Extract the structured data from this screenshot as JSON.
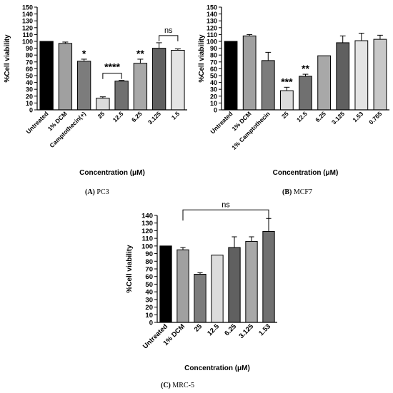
{
  "chart_data": [
    {
      "type": "bar",
      "panel": "A",
      "caption_letter": "(A)",
      "caption_name": "PC3",
      "xlabel": "Concentration (μM)",
      "ylabel": "%Cell viability",
      "ylim": [
        0,
        150
      ],
      "yticks": [
        0,
        10,
        20,
        30,
        40,
        50,
        60,
        70,
        80,
        90,
        100,
        110,
        120,
        130,
        140,
        150
      ],
      "categories": [
        "Untreated",
        "1% DCM",
        "Camptothecin(+)",
        "25",
        "12.5",
        "6.25",
        "3.125",
        "1.5"
      ],
      "values": [
        100,
        97,
        71,
        17,
        42,
        68,
        90,
        87
      ],
      "errors": [
        0,
        2,
        3,
        2,
        1,
        6,
        8,
        2
      ],
      "colors": [
        "#000000",
        "#a0a0a0",
        "#7c7c7c",
        "#dcdcdc",
        "#707070",
        "#a8a8a8",
        "#606060",
        "#e4e4e4"
      ],
      "bar_annotations": [
        {
          "category": "Camptothecin(+)",
          "text": "*"
        },
        {
          "category": "6.25",
          "text": "**"
        }
      ],
      "brackets": [
        {
          "from": "25",
          "to": "12.5",
          "text": "****"
        },
        {
          "from": "3.125",
          "to": "1.5",
          "text": "ns"
        }
      ]
    },
    {
      "type": "bar",
      "panel": "B",
      "caption_letter": "(B)",
      "caption_name": "MCF7",
      "xlabel": "Concentration (μM)",
      "ylabel": "%Cell viability",
      "ylim": [
        0,
        150
      ],
      "yticks": [
        0,
        10,
        20,
        30,
        40,
        50,
        60,
        70,
        80,
        90,
        100,
        110,
        120,
        130,
        140,
        150
      ],
      "categories": [
        "Untreated",
        "1% DCM",
        "1% Camptothecin",
        "25",
        "12.5",
        "6.25",
        "3.125",
        "1.53",
        "0.765"
      ],
      "values": [
        100,
        108,
        72,
        28,
        49,
        79,
        98,
        101,
        103
      ],
      "errors": [
        0,
        2,
        12,
        5,
        3,
        0,
        10,
        11,
        6
      ],
      "colors": [
        "#000000",
        "#a0a0a0",
        "#7c7c7c",
        "#dcdcdc",
        "#707070",
        "#a8a8a8",
        "#606060",
        "#e4e4e4",
        "#c8c8c8"
      ],
      "bar_annotations": [
        {
          "category": "25",
          "text": "***"
        },
        {
          "category": "12.5",
          "text": "**"
        }
      ],
      "brackets": []
    },
    {
      "type": "bar",
      "panel": "C",
      "caption_letter": "(C)",
      "caption_name": "MRC-5",
      "xlabel": "Concentration (μM)",
      "ylabel": "%Cell viability",
      "ylim": [
        0,
        140
      ],
      "yticks": [
        0,
        10,
        20,
        30,
        40,
        50,
        60,
        70,
        80,
        90,
        100,
        110,
        120,
        130,
        140
      ],
      "categories": [
        "Untreated",
        "1% DCM",
        "25",
        "12.5",
        "6.25",
        "3.125",
        "1.53"
      ],
      "values": [
        100,
        95,
        63,
        88,
        98,
        106,
        119
      ],
      "errors": [
        0,
        3,
        2,
        0,
        14,
        6,
        17
      ],
      "colors": [
        "#000000",
        "#a0a0a0",
        "#7c7c7c",
        "#dcdcdc",
        "#606060",
        "#a8a8a8",
        "#707070"
      ],
      "bar_annotations": [],
      "brackets": [
        {
          "from": "1% DCM",
          "to": "1.53",
          "text": "ns"
        }
      ]
    }
  ]
}
